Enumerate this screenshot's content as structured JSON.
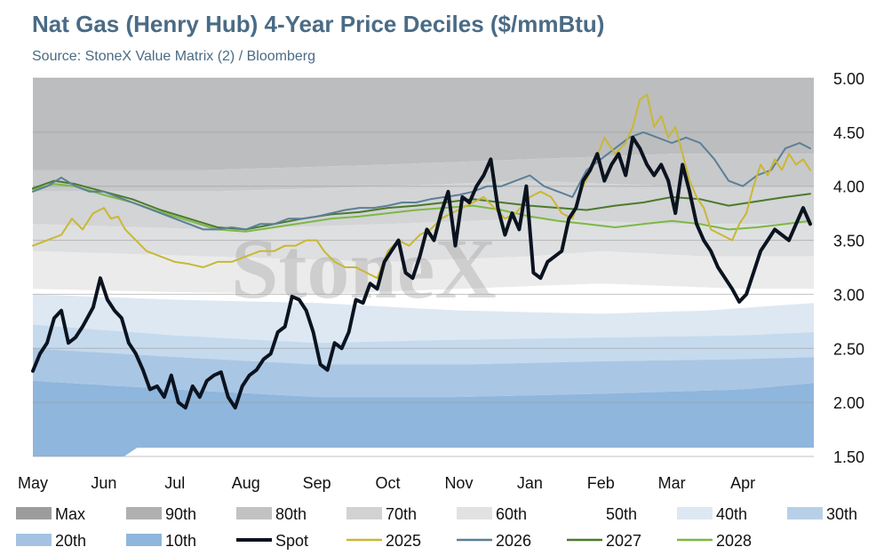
{
  "colors": {
    "title": "#4a6b85",
    "subtitle": "#4a6b85",
    "bands": [
      "#bcbdbe",
      "#c8c9ca",
      "#d3d4d5",
      "#dedfe0",
      "#ebebec",
      "#ffffff",
      "#dde8f3",
      "#c6daed",
      "#a9c7e4",
      "#8fb6dc"
    ],
    "legend_swatches": [
      "#9c9c9c",
      "#b0b0b0",
      "#c2c2c2",
      "#d2d2d2",
      "#e2e2e2",
      "#ffffff",
      "#dde8f3",
      "#b7d0e8",
      "#a4c3e2",
      "#8fb6dc"
    ],
    "spot": "#0b1320",
    "y2025": "#c8b834",
    "y2026": "#5b7f98",
    "y2027": "#4a7a2c",
    "y2028": "#7cb845",
    "gridline": "#9a9a9a"
  },
  "chart_data": {
    "type": "line",
    "title": "Nat Gas (Henry Hub) 4-Year Price Deciles ($/mmBtu)",
    "subtitle": "Source: StoneX Value Matrix (2) / Bloomberg",
    "watermark": "StoneX",
    "x_ticks": [
      "May",
      "Jun",
      "Jul",
      "Aug",
      "Sep",
      "Oct",
      "Nov",
      "Jan",
      "Feb",
      "Mar",
      "Apr"
    ],
    "x_range": [
      0,
      11
    ],
    "ylim": [
      1.5,
      5.0
    ],
    "y_ticks": [
      "5.00",
      "4.50",
      "4.00",
      "3.50",
      "3.00",
      "2.50",
      "2.00",
      "1.50"
    ],
    "y_tick_values": [
      5.0,
      4.5,
      4.0,
      3.5,
      3.0,
      2.5,
      2.0,
      1.5
    ],
    "y_axis_position": "right",
    "grid": "horizontal",
    "legend_position": "bottom",
    "legend": [
      "Max",
      "90th",
      "80th",
      "70th",
      "60th",
      "50th",
      "40th",
      "30th",
      "20th",
      "10th",
      "Spot",
      "2025",
      "2026",
      "2027",
      "2028"
    ],
    "deciles": [
      {
        "name": "Max",
        "x": [
          0,
          11
        ],
        "values": [
          5.0,
          5.0
        ]
      },
      {
        "name": "90th",
        "x": [
          0,
          2.5,
          5,
          7,
          9,
          11
        ],
        "values": [
          4.15,
          4.15,
          4.2,
          4.25,
          4.3,
          4.3
        ]
      },
      {
        "name": "80th",
        "x": [
          0,
          2.5,
          5,
          7,
          9,
          11
        ],
        "values": [
          3.95,
          3.95,
          4.0,
          4.05,
          4.0,
          4.0
        ]
      },
      {
        "name": "70th",
        "x": [
          0,
          2.5,
          5,
          7,
          9,
          11
        ],
        "values": [
          3.65,
          3.6,
          3.65,
          3.7,
          3.65,
          3.65
        ]
      },
      {
        "name": "60th",
        "x": [
          0,
          2.5,
          5,
          7,
          8,
          9.5,
          11
        ],
        "values": [
          3.4,
          3.35,
          3.3,
          3.35,
          3.4,
          3.35,
          3.35
        ]
      },
      {
        "name": "50th",
        "x": [
          0,
          2,
          4,
          6,
          8,
          10,
          11
        ],
        "values": [
          3.05,
          3.02,
          3.0,
          3.05,
          3.1,
          3.05,
          3.05
        ]
      },
      {
        "name": "40th",
        "x": [
          0,
          2,
          4,
          6,
          8,
          9.5,
          11
        ],
        "values": [
          3.0,
          2.95,
          2.92,
          2.85,
          2.82,
          2.85,
          2.92
        ]
      },
      {
        "name": "30th",
        "x": [
          0,
          2,
          4,
          6,
          8,
          10,
          11
        ],
        "values": [
          2.72,
          2.62,
          2.55,
          2.58,
          2.6,
          2.62,
          2.65
        ]
      },
      {
        "name": "20th",
        "x": [
          0,
          2,
          4,
          6,
          8,
          10,
          11
        ],
        "values": [
          2.5,
          2.42,
          2.35,
          2.35,
          2.38,
          2.4,
          2.42
        ]
      },
      {
        "name": "10th",
        "x": [
          0,
          2,
          4,
          6,
          8,
          10,
          11
        ],
        "values": [
          2.2,
          2.12,
          2.05,
          2.05,
          2.08,
          2.12,
          2.18
        ]
      }
    ],
    "min_band": {
      "x": [
        0,
        1.4,
        1.4,
        11
      ],
      "values": [
        1.5,
        1.5,
        1.58,
        1.58
      ]
    },
    "series": [
      {
        "name": "Spot",
        "x": [
          0,
          0.1,
          0.2,
          0.3,
          0.4,
          0.5,
          0.6,
          0.7,
          0.85,
          0.95,
          1.05,
          1.15,
          1.25,
          1.35,
          1.45,
          1.55,
          1.65,
          1.75,
          1.85,
          1.95,
          2.05,
          2.15,
          2.25,
          2.35,
          2.45,
          2.55,
          2.65,
          2.75,
          2.85,
          2.95,
          3.05,
          3.15,
          3.25,
          3.35,
          3.45,
          3.55,
          3.65,
          3.75,
          3.85,
          3.95,
          4.05,
          4.15,
          4.25,
          4.35,
          4.45,
          4.55,
          4.65,
          4.75,
          4.85,
          4.95,
          5.05,
          5.15,
          5.25,
          5.35,
          5.45,
          5.55,
          5.65,
          5.75,
          5.85,
          5.95,
          6.05,
          6.15,
          6.25,
          6.35,
          6.45,
          6.55,
          6.65,
          6.75,
          6.85,
          6.95,
          7.05,
          7.15,
          7.25,
          7.35,
          7.45,
          7.55,
          7.65,
          7.75,
          7.85,
          7.95,
          8.05,
          8.15,
          8.25,
          8.35,
          8.45,
          8.55,
          8.65,
          8.75,
          8.85,
          8.95,
          9.05,
          9.15,
          9.25,
          9.35,
          9.45,
          9.55,
          9.65,
          9.75,
          9.85,
          9.95,
          10.05,
          10.15,
          10.25,
          10.35,
          10.45,
          10.55,
          10.65,
          10.75,
          10.85,
          10.95
        ],
        "values": [
          2.29,
          2.45,
          2.55,
          2.78,
          2.85,
          2.55,
          2.6,
          2.7,
          2.88,
          3.15,
          2.95,
          2.85,
          2.78,
          2.55,
          2.45,
          2.3,
          2.12,
          2.15,
          2.05,
          2.25,
          2.0,
          1.95,
          2.15,
          2.05,
          2.2,
          2.25,
          2.28,
          2.05,
          1.95,
          2.15,
          2.25,
          2.3,
          2.4,
          2.45,
          2.65,
          2.7,
          2.98,
          2.95,
          2.85,
          2.65,
          2.35,
          2.3,
          2.55,
          2.5,
          2.65,
          2.95,
          2.92,
          3.1,
          3.05,
          3.3,
          3.4,
          3.5,
          3.2,
          3.15,
          3.35,
          3.6,
          3.5,
          3.75,
          3.95,
          3.45,
          3.9,
          3.85,
          4.0,
          4.1,
          4.25,
          3.8,
          3.55,
          3.75,
          3.6,
          4.0,
          3.2,
          3.15,
          3.3,
          3.35,
          3.4,
          3.7,
          3.8,
          4.05,
          4.15,
          4.3,
          4.05,
          4.2,
          4.3,
          4.1,
          4.45,
          4.35,
          4.2,
          4.1,
          4.2,
          4.05,
          3.75,
          4.2,
          3.95,
          3.65,
          3.5,
          3.4,
          3.25,
          3.15,
          3.05,
          2.93,
          3.0,
          3.2,
          3.4,
          3.5,
          3.6,
          3.55,
          3.5,
          3.65,
          3.8,
          3.65
        ]
      },
      {
        "name": "2025",
        "x": [
          0,
          0.2,
          0.4,
          0.55,
          0.7,
          0.85,
          1.0,
          1.1,
          1.2,
          1.3,
          1.45,
          1.6,
          1.8,
          2.0,
          2.2,
          2.4,
          2.6,
          2.8,
          3.0,
          3.2,
          3.4,
          3.55,
          3.7,
          3.85,
          4.0,
          4.1,
          4.25,
          4.4,
          4.55,
          4.7,
          4.85,
          5.0,
          5.15,
          5.3,
          5.45,
          5.6,
          5.75,
          5.9,
          6.05,
          6.2,
          6.35,
          6.5,
          6.65,
          6.8,
          7.0,
          7.15,
          7.3,
          7.45,
          7.6,
          7.75,
          7.9,
          8.05,
          8.2,
          8.35,
          8.45,
          8.55,
          8.65,
          8.75,
          8.85,
          8.95,
          9.05,
          9.15,
          9.25,
          9.35,
          9.45,
          9.55,
          9.7,
          9.85,
          9.95,
          10.05,
          10.15,
          10.25,
          10.35,
          10.45,
          10.55,
          10.65,
          10.75,
          10.85,
          10.95
        ],
        "values": [
          3.45,
          3.5,
          3.55,
          3.7,
          3.6,
          3.75,
          3.8,
          3.7,
          3.72,
          3.6,
          3.5,
          3.4,
          3.35,
          3.3,
          3.28,
          3.25,
          3.3,
          3.3,
          3.35,
          3.4,
          3.4,
          3.45,
          3.45,
          3.5,
          3.5,
          3.4,
          3.3,
          3.25,
          3.25,
          3.2,
          3.15,
          3.4,
          3.5,
          3.45,
          3.55,
          3.6,
          3.7,
          3.75,
          3.8,
          3.85,
          3.9,
          3.8,
          3.7,
          3.75,
          3.9,
          3.95,
          3.9,
          3.75,
          3.7,
          4.0,
          4.2,
          4.45,
          4.3,
          4.4,
          4.55,
          4.8,
          4.85,
          4.55,
          4.65,
          4.45,
          4.55,
          4.3,
          4.05,
          3.9,
          3.8,
          3.6,
          3.55,
          3.5,
          3.65,
          3.75,
          4.0,
          4.2,
          4.1,
          4.25,
          4.15,
          4.3,
          4.2,
          4.25,
          4.15
        ]
      },
      {
        "name": "2026",
        "x": [
          0,
          0.2,
          0.4,
          0.6,
          0.8,
          1.0,
          1.2,
          1.4,
          1.6,
          1.8,
          2.0,
          2.2,
          2.4,
          2.6,
          2.8,
          3.0,
          3.2,
          3.4,
          3.6,
          3.8,
          4.0,
          4.2,
          4.4,
          4.6,
          4.8,
          5.0,
          5.2,
          5.4,
          5.6,
          5.8,
          6.0,
          6.2,
          6.4,
          6.6,
          6.8,
          7.0,
          7.2,
          7.4,
          7.6,
          7.8,
          8.0,
          8.2,
          8.4,
          8.6,
          8.8,
          9.0,
          9.2,
          9.4,
          9.6,
          9.8,
          10.0,
          10.2,
          10.4,
          10.6,
          10.8,
          10.95
        ],
        "values": [
          3.95,
          4.0,
          4.08,
          4.0,
          3.95,
          3.95,
          3.9,
          3.85,
          3.8,
          3.75,
          3.7,
          3.65,
          3.6,
          3.6,
          3.62,
          3.6,
          3.65,
          3.65,
          3.7,
          3.7,
          3.72,
          3.75,
          3.78,
          3.8,
          3.8,
          3.82,
          3.85,
          3.85,
          3.88,
          3.9,
          3.92,
          3.95,
          4.0,
          4.0,
          4.05,
          4.1,
          4.0,
          3.95,
          3.9,
          4.15,
          4.25,
          4.35,
          4.45,
          4.5,
          4.45,
          4.4,
          4.45,
          4.4,
          4.25,
          4.05,
          4.0,
          4.1,
          4.15,
          4.35,
          4.4,
          4.35
        ]
      },
      {
        "name": "2027",
        "x": [
          0,
          0.3,
          0.6,
          1.0,
          1.4,
          1.8,
          2.2,
          2.6,
          3.0,
          3.4,
          3.8,
          4.2,
          4.6,
          5.0,
          5.4,
          5.8,
          6.2,
          6.6,
          7.0,
          7.4,
          7.8,
          8.2,
          8.6,
          9.0,
          9.4,
          9.8,
          10.2,
          10.6,
          10.95
        ],
        "values": [
          3.98,
          4.05,
          4.02,
          3.95,
          3.88,
          3.78,
          3.7,
          3.62,
          3.6,
          3.65,
          3.7,
          3.74,
          3.76,
          3.8,
          3.82,
          3.85,
          3.88,
          3.85,
          3.82,
          3.8,
          3.78,
          3.82,
          3.85,
          3.9,
          3.88,
          3.82,
          3.86,
          3.9,
          3.93
        ]
      },
      {
        "name": "2028",
        "x": [
          0,
          0.3,
          0.6,
          1.0,
          1.4,
          1.8,
          2.2,
          2.6,
          3.0,
          3.4,
          3.8,
          4.2,
          4.6,
          5.0,
          5.4,
          5.8,
          6.2,
          6.6,
          7.0,
          7.4,
          7.8,
          8.2,
          8.6,
          9.0,
          9.4,
          9.8,
          10.2,
          10.6,
          10.95
        ],
        "values": [
          3.97,
          4.02,
          4.0,
          3.92,
          3.85,
          3.76,
          3.68,
          3.6,
          3.58,
          3.62,
          3.66,
          3.7,
          3.72,
          3.75,
          3.78,
          3.8,
          3.82,
          3.78,
          3.72,
          3.68,
          3.65,
          3.62,
          3.65,
          3.68,
          3.65,
          3.6,
          3.62,
          3.65,
          3.68
        ]
      }
    ]
  }
}
